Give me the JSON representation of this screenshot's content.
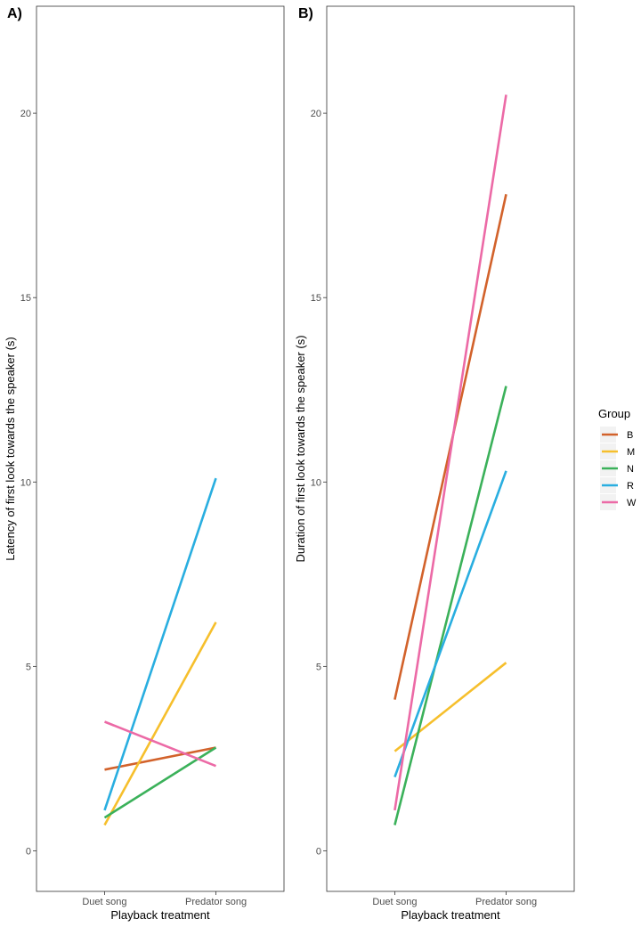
{
  "chart_data": [
    {
      "panel_tag": "A)",
      "type": "line",
      "xlabel": "Playback treatment",
      "ylabel": "Latency of first look towards the speaker (s)",
      "categories": [
        "Duet song",
        "Predator song"
      ],
      "ylim": [
        -1.1,
        22.9
      ],
      "yticks": [
        0,
        5,
        10,
        15,
        20
      ],
      "grid": false,
      "series": [
        {
          "name": "B",
          "color": "#d2622b",
          "values": [
            2.2,
            2.8
          ]
        },
        {
          "name": "M",
          "color": "#f6bf2c",
          "values": [
            0.7,
            6.2
          ]
        },
        {
          "name": "N",
          "color": "#3bb15a",
          "values": [
            0.9,
            2.8
          ]
        },
        {
          "name": "R",
          "color": "#29aee0",
          "values": [
            1.1,
            10.1
          ]
        },
        {
          "name": "W",
          "color": "#ec6aa6",
          "values": [
            3.5,
            2.3
          ]
        }
      ]
    },
    {
      "panel_tag": "B)",
      "type": "line",
      "xlabel": "Playback treatment",
      "ylabel": "Duration of first look towards the speaker (s)",
      "categories": [
        "Duet song",
        "Predator song"
      ],
      "ylim": [
        -1.1,
        22.9
      ],
      "yticks": [
        0,
        5,
        10,
        15,
        20
      ],
      "grid": false,
      "series": [
        {
          "name": "B",
          "color": "#d2622b",
          "values": [
            4.1,
            17.8
          ]
        },
        {
          "name": "M",
          "color": "#f6bf2c",
          "values": [
            2.7,
            5.1
          ]
        },
        {
          "name": "N",
          "color": "#3bb15a",
          "values": [
            0.7,
            12.6
          ]
        },
        {
          "name": "R",
          "color": "#29aee0",
          "values": [
            2.0,
            10.3
          ]
        },
        {
          "name": "W",
          "color": "#ec6aa6",
          "values": [
            1.1,
            20.5
          ]
        }
      ]
    }
  ],
  "legend": {
    "title": "Group",
    "placement": "right",
    "items": [
      {
        "label": "B",
        "color": "#d2622b"
      },
      {
        "label": "M",
        "color": "#f6bf2c"
      },
      {
        "label": "N",
        "color": "#3bb15a"
      },
      {
        "label": "R",
        "color": "#29aee0"
      },
      {
        "label": "W",
        "color": "#ec6aa6"
      }
    ]
  }
}
